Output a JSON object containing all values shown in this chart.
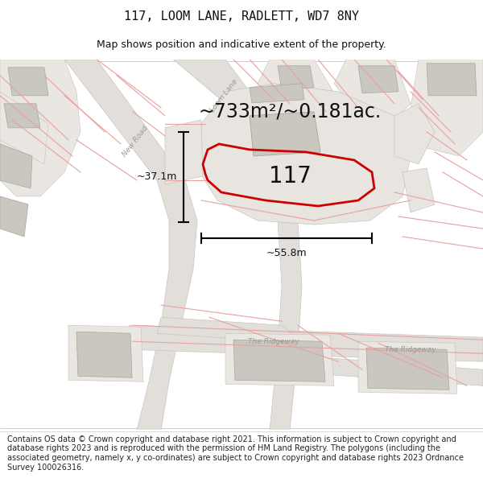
{
  "title": "117, LOOM LANE, RADLETT, WD7 8NY",
  "subtitle": "Map shows position and indicative extent of the property.",
  "area_text": "~733m²/~0.181ac.",
  "label_117": "117",
  "dim_vertical": "~37.1m",
  "dim_horizontal": "~55.8m",
  "footer": "Contains OS data © Crown copyright and database right 2021. This information is subject to Crown copyright and database rights 2023 and is reproduced with the permission of HM Land Registry. The polygons (including the associated geometry, namely x, y co-ordinates) are subject to Crown copyright and database rights 2023 Ordnance Survey 100026316.",
  "map_bg": "#f0eeeb",
  "road_gray_fill": "#e2dfda",
  "road_gray_stroke": "#c8c5bf",
  "building_fill": "#cac7c0",
  "building_stroke": "#a8a59e",
  "pink": "#e08080",
  "pink_light": "#e8a0a0",
  "red_outline": "#cc0000",
  "black": "#111111",
  "street_label_color": "#999999",
  "title_fontsize": 11,
  "subtitle_fontsize": 9,
  "area_fontsize": 17,
  "label_fontsize": 20,
  "dim_fontsize": 9,
  "footer_fontsize": 7
}
